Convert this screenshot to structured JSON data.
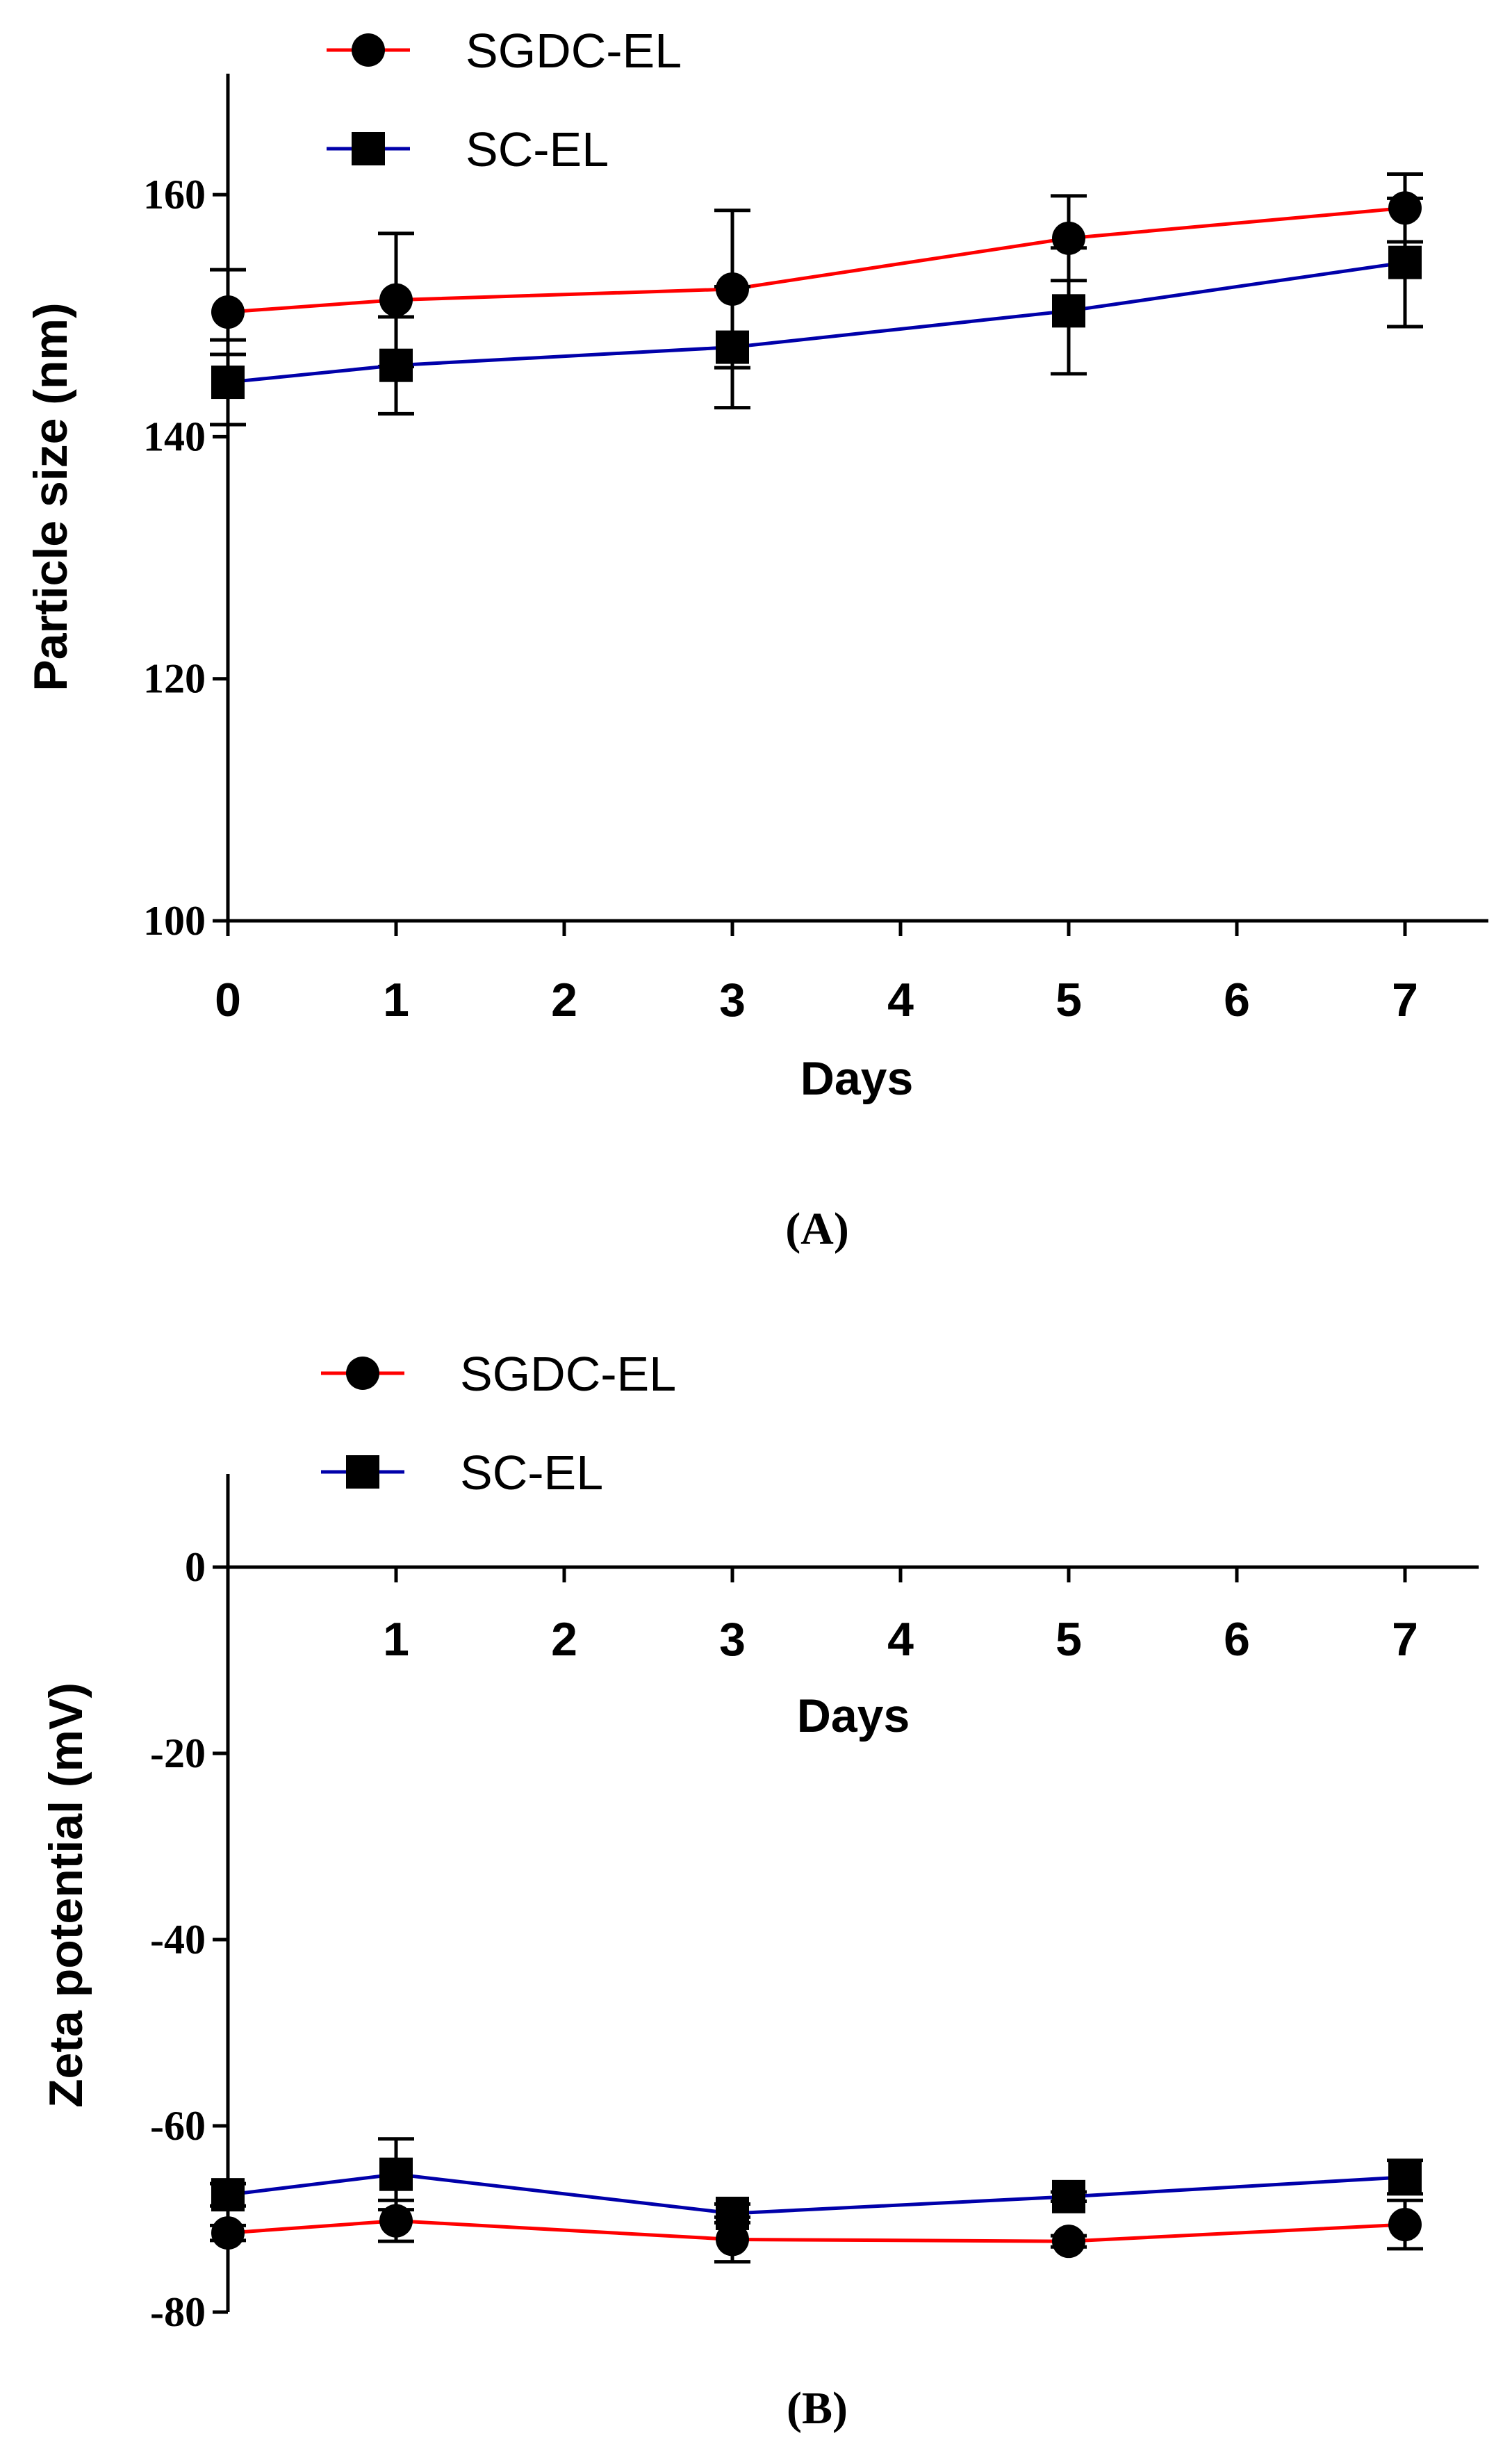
{
  "chart_data": [
    {
      "type": "line",
      "panel_label": "(A)",
      "xlabel": "Days",
      "ylabel": "Particle size (nm)",
      "xlim": [
        0,
        7.5
      ],
      "ylim": [
        100,
        170
      ],
      "xticks": [
        0,
        1,
        2,
        3,
        4,
        5,
        6,
        7
      ],
      "xtick_labels": [
        "0",
        "1",
        "2",
        "3",
        "4",
        "5",
        "6",
        "7"
      ],
      "yticks": [
        100,
        120,
        140,
        160
      ],
      "ytick_labels": [
        "100",
        "120",
        "140",
        "160"
      ],
      "x_axis_at": 100,
      "grid": false,
      "legend_position": "top-left",
      "series": [
        {
          "name": "SGDC-EL",
          "color": "#ff0000",
          "marker": "circle",
          "x": [
            0,
            1,
            3,
            5,
            7
          ],
          "values": [
            150.3,
            151.3,
            152.2,
            156.4,
            158.9
          ],
          "errors": [
            3.5,
            5.5,
            6.5,
            3.5,
            2.8
          ]
        },
        {
          "name": "SC-EL",
          "color": "#0000aa",
          "marker": "square",
          "x": [
            0,
            1,
            3,
            5,
            7
          ],
          "values": [
            144.5,
            145.9,
            147.4,
            150.4,
            154.4
          ],
          "errors": [
            3.5,
            4.0,
            5.0,
            5.2,
            5.3
          ]
        }
      ]
    },
    {
      "type": "line",
      "panel_label": "(B)",
      "xlabel": "Days",
      "ylabel": "Zeta potential (mV)",
      "xlim": [
        0,
        7.5
      ],
      "ylim": [
        -80,
        10
      ],
      "xticks": [
        1,
        2,
        3,
        4,
        5,
        6,
        7
      ],
      "xtick_labels": [
        "1",
        "2",
        "3",
        "4",
        "5",
        "6",
        "7"
      ],
      "yticks": [
        0,
        -20,
        -40,
        -60,
        -80
      ],
      "ytick_labels": [
        "0",
        "-20",
        "-40",
        "-60",
        "-80"
      ],
      "x_axis_at": 0,
      "grid": false,
      "legend_position": "top-left",
      "series": [
        {
          "name": "SGDC-EL",
          "color": "#ff0000",
          "marker": "circle",
          "x": [
            0,
            1,
            3,
            5,
            7
          ],
          "values": [
            -71.5,
            -70.2,
            -72.2,
            -72.4,
            -70.6
          ],
          "errors": [
            0.8,
            2.2,
            2.4,
            0.6,
            2.6
          ]
        },
        {
          "name": "SC-EL",
          "color": "#0000aa",
          "marker": "square",
          "x": [
            0,
            1,
            3,
            5,
            7
          ],
          "values": [
            -67.4,
            -65.2,
            -69.4,
            -67.6,
            -65.5
          ],
          "errors": [
            1.2,
            3.8,
            1.0,
            0.5,
            1.8
          ]
        }
      ]
    }
  ]
}
